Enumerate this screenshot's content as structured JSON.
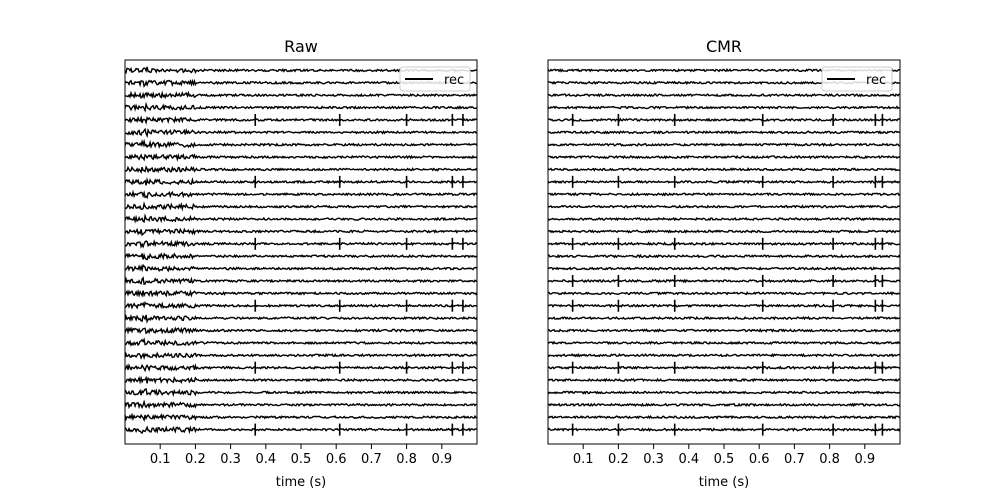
{
  "chart_data": [
    {
      "type": "line",
      "title": "Raw",
      "xlabel": "time (s)",
      "ylabel": "",
      "xlim": [
        0.0,
        1.0
      ],
      "xticks": [
        0.1,
        0.2,
        0.3,
        0.4,
        0.5,
        0.6,
        0.7,
        0.8,
        0.9
      ],
      "n_channels": 30,
      "legend": {
        "labels": [
          "rec"
        ],
        "placement": "top-right",
        "color": "#000000"
      },
      "grid": false,
      "yticks_shown": false,
      "series": [
        {
          "name": "rec",
          "color": "#000000",
          "artifact_window_s": [
            0.0,
            0.2
          ],
          "spike_times_s": [
            0.37,
            0.61,
            0.8,
            0.93,
            0.96
          ]
        }
      ]
    },
    {
      "type": "line",
      "title": "CMR",
      "xlabel": "time (s)",
      "ylabel": "",
      "xlim": [
        0.0,
        1.0
      ],
      "xticks": [
        0.1,
        0.2,
        0.3,
        0.4,
        0.5,
        0.6,
        0.7,
        0.8,
        0.9
      ],
      "n_channels": 30,
      "legend": {
        "labels": [
          "rec"
        ],
        "placement": "top-right",
        "color": "#000000"
      },
      "grid": false,
      "yticks_shown": false,
      "series": [
        {
          "name": "rec",
          "color": "#000000",
          "artifact_window_s": [],
          "spike_times_s": [
            0.07,
            0.2,
            0.36,
            0.61,
            0.81,
            0.93,
            0.95
          ]
        }
      ]
    }
  ]
}
